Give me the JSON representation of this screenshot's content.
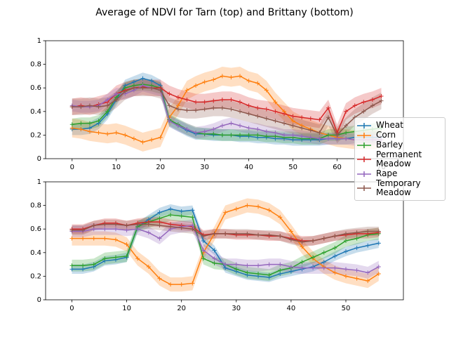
{
  "title": "Average of NDVI for Tarn (top) and Brittany (bottom)",
  "chart_data": [
    {
      "type": "line",
      "xlim": [
        -6,
        75
      ],
      "ylim": [
        0,
        1
      ],
      "xticks": [
        0,
        10,
        20,
        30,
        40,
        50,
        60,
        70
      ],
      "yticks": [
        0.0,
        0.2,
        0.4,
        0.6,
        0.8,
        1.0
      ],
      "x": [
        0,
        2,
        4,
        6,
        8,
        10,
        12,
        14,
        16,
        18,
        20,
        22,
        24,
        26,
        28,
        30,
        32,
        34,
        36,
        38,
        40,
        42,
        44,
        46,
        48,
        50,
        52,
        54,
        56,
        58,
        60,
        62,
        64,
        66,
        68,
        70
      ],
      "series": [
        {
          "name": "Wheat",
          "color": "#1f77b4",
          "error": 0.05,
          "values": [
            0.25,
            0.25,
            0.26,
            0.3,
            0.38,
            0.5,
            0.62,
            0.65,
            0.68,
            0.66,
            0.62,
            0.32,
            0.28,
            0.24,
            0.21,
            0.21,
            0.2,
            0.2,
            0.2,
            0.19,
            0.19,
            0.18,
            0.18,
            0.17,
            0.17,
            0.16,
            0.16,
            0.16,
            0.16,
            0.17,
            0.17,
            0.17,
            0.18,
            0.18,
            0.18,
            0.18
          ]
        },
        {
          "name": "Corn",
          "color": "#ff7f0e",
          "error": 0.08,
          "values": [
            0.26,
            0.25,
            0.23,
            0.22,
            0.21,
            0.22,
            0.2,
            0.17,
            0.14,
            0.16,
            0.18,
            0.35,
            0.45,
            0.58,
            0.62,
            0.65,
            0.67,
            0.7,
            0.69,
            0.7,
            0.66,
            0.64,
            0.58,
            0.48,
            0.4,
            0.32,
            0.28,
            0.25,
            0.22,
            0.2,
            0.18,
            0.17,
            0.16,
            0.16,
            0.16,
            0.16
          ]
        },
        {
          "name": "Barley",
          "color": "#2ca02c",
          "error": 0.05,
          "values": [
            0.29,
            0.3,
            0.3,
            0.32,
            0.4,
            0.52,
            0.6,
            0.62,
            0.63,
            0.62,
            0.6,
            0.33,
            0.29,
            0.25,
            0.22,
            0.21,
            0.21,
            0.2,
            0.2,
            0.2,
            0.2,
            0.2,
            0.19,
            0.19,
            0.18,
            0.18,
            0.17,
            0.17,
            0.17,
            0.2,
            0.2,
            0.22,
            0.23,
            0.24,
            0.25,
            0.26
          ]
        },
        {
          "name": "Permanent Meadow",
          "color": "#d62728",
          "error": 0.07,
          "values": [
            0.44,
            0.45,
            0.44,
            0.46,
            0.48,
            0.55,
            0.58,
            0.6,
            0.61,
            0.6,
            0.6,
            0.55,
            0.52,
            0.5,
            0.48,
            0.48,
            0.49,
            0.5,
            0.5,
            0.48,
            0.45,
            0.43,
            0.42,
            0.4,
            0.38,
            0.36,
            0.35,
            0.34,
            0.33,
            0.43,
            0.22,
            0.4,
            0.45,
            0.48,
            0.5,
            0.53
          ]
        },
        {
          "name": "Rape",
          "color": "#9467bd",
          "error": 0.05,
          "values": [
            0.45,
            0.44,
            0.44,
            0.45,
            0.5,
            0.55,
            0.55,
            0.58,
            0.62,
            0.6,
            0.58,
            0.32,
            0.28,
            0.25,
            0.22,
            0.23,
            0.25,
            0.28,
            0.3,
            0.28,
            0.26,
            0.25,
            0.23,
            0.22,
            0.2,
            0.2,
            0.19,
            0.18,
            0.17,
            0.17,
            0.17,
            0.17,
            0.16,
            0.16,
            0.16,
            0.16
          ]
        },
        {
          "name": "Temporary Meadow",
          "color": "#8c564b",
          "error": 0.07,
          "values": [
            0.44,
            0.44,
            0.45,
            0.44,
            0.45,
            0.5,
            0.57,
            0.6,
            0.6,
            0.6,
            0.58,
            0.45,
            0.42,
            0.41,
            0.41,
            0.42,
            0.43,
            0.43,
            0.42,
            0.4,
            0.38,
            0.36,
            0.34,
            0.32,
            0.3,
            0.28,
            0.26,
            0.24,
            0.22,
            0.35,
            0.2,
            0.28,
            0.35,
            0.4,
            0.45,
            0.49
          ]
        }
      ]
    },
    {
      "type": "line",
      "xlim": [
        -4.8,
        60.5
      ],
      "ylim": [
        0,
        1
      ],
      "xticks": [
        0,
        10,
        20,
        30,
        40,
        50
      ],
      "yticks": [
        0.0,
        0.2,
        0.4,
        0.6,
        0.8,
        1.0
      ],
      "x": [
        0,
        2,
        4,
        6,
        8,
        10,
        12,
        14,
        16,
        18,
        20,
        22,
        24,
        26,
        28,
        30,
        32,
        34,
        36,
        38,
        40,
        42,
        44,
        46,
        48,
        50,
        52,
        54,
        56
      ],
      "series": [
        {
          "name": "Wheat",
          "color": "#1f77b4",
          "error": 0.04,
          "values": [
            0.26,
            0.26,
            0.28,
            0.33,
            0.34,
            0.36,
            0.62,
            0.68,
            0.74,
            0.77,
            0.75,
            0.76,
            0.5,
            0.42,
            0.27,
            0.24,
            0.21,
            0.2,
            0.19,
            0.22,
            0.24,
            0.26,
            0.28,
            0.32,
            0.37,
            0.41,
            0.44,
            0.46,
            0.48
          ]
        },
        {
          "name": "Corn",
          "color": "#ff7f0e",
          "error": 0.06,
          "values": [
            0.52,
            0.52,
            0.52,
            0.52,
            0.51,
            0.47,
            0.35,
            0.28,
            0.18,
            0.13,
            0.13,
            0.14,
            0.4,
            0.56,
            0.74,
            0.77,
            0.8,
            0.79,
            0.76,
            0.7,
            0.58,
            0.45,
            0.35,
            0.28,
            0.23,
            0.2,
            0.18,
            0.16,
            0.22
          ]
        },
        {
          "name": "Barley",
          "color": "#2ca02c",
          "error": 0.05,
          "values": [
            0.29,
            0.29,
            0.3,
            0.35,
            0.36,
            0.37,
            0.62,
            0.66,
            0.69,
            0.72,
            0.71,
            0.7,
            0.35,
            0.31,
            0.3,
            0.26,
            0.23,
            0.22,
            0.21,
            0.25,
            0.27,
            0.32,
            0.36,
            0.4,
            0.44,
            0.5,
            0.52,
            0.55,
            0.56
          ]
        },
        {
          "name": "Permanent Meadow",
          "color": "#d62728",
          "error": 0.04,
          "values": [
            0.6,
            0.6,
            0.63,
            0.65,
            0.65,
            0.63,
            0.65,
            0.66,
            0.66,
            0.64,
            0.63,
            0.62,
            0.55,
            0.56,
            0.56,
            0.55,
            0.55,
            0.55,
            0.54,
            0.54,
            0.52,
            0.5,
            0.5,
            0.52,
            0.54,
            0.55,
            0.56,
            0.56,
            0.57
          ]
        },
        {
          "name": "Rape",
          "color": "#9467bd",
          "error": 0.05,
          "values": [
            0.58,
            0.58,
            0.6,
            0.6,
            0.6,
            0.59,
            0.6,
            0.57,
            0.52,
            0.6,
            0.62,
            0.63,
            0.42,
            0.35,
            0.3,
            0.3,
            0.29,
            0.29,
            0.3,
            0.3,
            0.28,
            0.27,
            0.27,
            0.27,
            0.27,
            0.26,
            0.25,
            0.23,
            0.28
          ]
        },
        {
          "name": "Temporary Meadow",
          "color": "#8c564b",
          "error": 0.04,
          "values": [
            0.59,
            0.59,
            0.63,
            0.64,
            0.64,
            0.63,
            0.64,
            0.64,
            0.63,
            0.62,
            0.61,
            0.6,
            0.54,
            0.56,
            0.56,
            0.56,
            0.56,
            0.55,
            0.55,
            0.54,
            0.51,
            0.49,
            0.5,
            0.52,
            0.54,
            0.56,
            0.57,
            0.58,
            0.58
          ]
        }
      ]
    }
  ]
}
